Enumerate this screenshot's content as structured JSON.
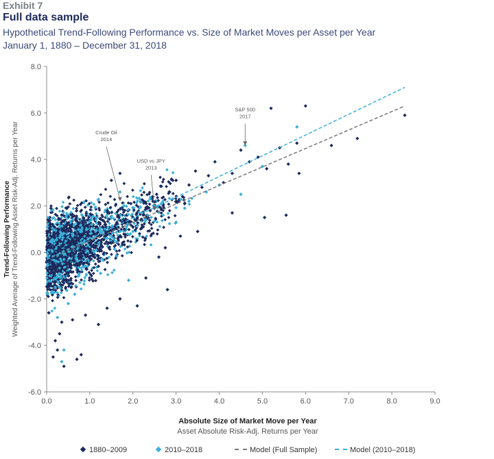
{
  "header": {
    "exhibit": "Exhibit 7",
    "title": "Full data sample",
    "subtitle": "Hypothetical Trend-Following Performance vs. Size of Market Moves per Asset per Year",
    "date_range": "January 1, 1880 – December 31, 2018"
  },
  "chart_data": {
    "type": "scatter",
    "xlabel": "Absolute Size of Market Move per Year",
    "xlabel_sub": "Asset Absolute Risk-Adj. Returns per Year",
    "ylabel": "Trend-Following Performance",
    "ylabel_sub": "Weighted Average of Trend-Following Asset Risk-Adj. Returns per Year",
    "xlim": [
      0.0,
      9.0
    ],
    "ylim": [
      -6.0,
      8.0
    ],
    "x_ticks": [
      "0.0",
      "1.0",
      "2.0",
      "3.0",
      "4.0",
      "5.0",
      "6.0",
      "7.0",
      "8.0",
      "9.0"
    ],
    "y_ticks": [
      "8.0",
      "6.0",
      "4.0",
      "2.0",
      "0.0",
      "-2.0",
      "-4.0",
      "-6.0"
    ],
    "grid": false,
    "legend_position": "bottom",
    "colors": {
      "series_1880": "#1d2a5c",
      "series_2010": "#3bb0d8",
      "model_full": "#777777",
      "model_recent": "#3bb0d8"
    },
    "series": [
      {
        "name": "1880–2009",
        "kind": "markers",
        "points": [
          [
            0.1,
            1.9
          ],
          [
            0.05,
            -2.6
          ],
          [
            0.15,
            -4.5
          ],
          [
            0.2,
            -3.8
          ],
          [
            0.25,
            -4.2
          ],
          [
            0.4,
            -4.9
          ],
          [
            0.7,
            -4.6
          ],
          [
            0.8,
            -4.4
          ],
          [
            0.35,
            -3.0
          ],
          [
            0.6,
            -2.9
          ],
          [
            0.1,
            0.2
          ],
          [
            0.2,
            -0.8
          ],
          [
            0.3,
            0.5
          ],
          [
            0.45,
            -1.2
          ],
          [
            0.55,
            1.1
          ],
          [
            0.7,
            0.3
          ],
          [
            0.85,
            -0.5
          ],
          [
            0.95,
            1.4
          ],
          [
            1.1,
            0.8
          ],
          [
            1.2,
            -0.6
          ],
          [
            1.35,
            1.2
          ],
          [
            1.5,
            0.4
          ],
          [
            1.65,
            1.6
          ],
          [
            1.8,
            1.0
          ],
          [
            1.95,
            2.1
          ],
          [
            2.1,
            1.5
          ],
          [
            2.25,
            2.2
          ],
          [
            2.4,
            1.8
          ],
          [
            2.55,
            2.5
          ],
          [
            2.7,
            2.0
          ],
          [
            2.85,
            2.6
          ],
          [
            3.0,
            3.1
          ],
          [
            3.15,
            2.4
          ],
          [
            3.3,
            2.9
          ],
          [
            3.45,
            3.5
          ],
          [
            3.6,
            2.8
          ],
          [
            3.75,
            3.3
          ],
          [
            3.9,
            3.9
          ],
          [
            4.1,
            3.0
          ],
          [
            4.3,
            3.4
          ],
          [
            4.5,
            4.4
          ],
          [
            4.7,
            3.9
          ],
          [
            4.9,
            4.1
          ],
          [
            5.1,
            3.6
          ],
          [
            5.2,
            6.2
          ],
          [
            5.4,
            4.5
          ],
          [
            5.6,
            3.8
          ],
          [
            5.8,
            4.7
          ],
          [
            6.0,
            6.3
          ],
          [
            5.85,
            3.4
          ],
          [
            5.05,
            1.5
          ],
          [
            5.55,
            1.6
          ],
          [
            4.3,
            1.7
          ],
          [
            3.5,
            0.9
          ],
          [
            2.6,
            -0.2
          ],
          [
            2.3,
            -1.1
          ],
          [
            2.75,
            0.2
          ],
          [
            3.1,
            0.7
          ],
          [
            1.7,
            -2.0
          ],
          [
            2.1,
            -2.3
          ],
          [
            1.2,
            -3.1
          ],
          [
            2.8,
            -1.6
          ],
          [
            6.6,
            4.6
          ],
          [
            7.2,
            4.9
          ],
          [
            8.3,
            5.9
          ],
          [
            1.5,
            3.1
          ],
          [
            1.7,
            3.4
          ],
          [
            0.3,
            -3.5
          ],
          [
            0.9,
            -2.7
          ],
          [
            1.4,
            -2.4
          ]
        ]
      },
      {
        "name": "2010–2018",
        "kind": "markers",
        "points": [
          [
            0.1,
            0.5
          ],
          [
            0.2,
            -1.5
          ],
          [
            0.3,
            1.1
          ],
          [
            0.4,
            -0.3
          ],
          [
            0.5,
            -2.2
          ],
          [
            0.6,
            0.8
          ],
          [
            0.75,
            -1.0
          ],
          [
            0.85,
            0.4
          ],
          [
            0.95,
            -0.6
          ],
          [
            1.05,
            1.2
          ],
          [
            1.15,
            0.1
          ],
          [
            1.25,
            -0.9
          ],
          [
            1.4,
            1.5
          ],
          [
            1.55,
            0.6
          ],
          [
            1.7,
            2.6
          ],
          [
            1.85,
            1.1
          ],
          [
            2.0,
            0.9
          ],
          [
            2.15,
            1.9
          ],
          [
            2.3,
            1.4
          ],
          [
            2.5,
            2.0
          ],
          [
            2.7,
            1.6
          ],
          [
            3.0,
            1.3
          ],
          [
            3.3,
            2.2
          ],
          [
            3.7,
            2.6
          ],
          [
            4.0,
            2.9
          ],
          [
            4.6,
            4.6
          ],
          [
            5.8,
            5.4
          ],
          [
            4.5,
            2.5
          ],
          [
            3.2,
            1.9
          ],
          [
            0.4,
            -4.2
          ],
          [
            0.35,
            -4.7
          ],
          [
            1.9,
            -1.2
          ],
          [
            0.25,
            -2.8
          ],
          [
            0.65,
            -1.8
          ],
          [
            1.3,
            0.9
          ],
          [
            2.4,
            2.3
          ],
          [
            5.0,
            3.7
          ]
        ]
      },
      {
        "name": "Model (Full Sample)",
        "kind": "line",
        "x": [
          0.0,
          8.3
        ],
        "y": [
          -0.3,
          6.3
        ]
      },
      {
        "name": "Model (2010–2018)",
        "kind": "line",
        "x": [
          0.0,
          8.3
        ],
        "y": [
          -0.3,
          7.1
        ]
      }
    ],
    "annotations": [
      {
        "lines": [
          "Crude Oil",
          "2014"
        ],
        "x": 1.7,
        "y": 2.2
      },
      {
        "lines": [
          "USD vs JPY",
          "2013"
        ],
        "x": 2.5,
        "y": 1.8
      },
      {
        "lines": [
          "S&P 500",
          "2017"
        ],
        "x": 4.6,
        "y": 4.6
      }
    ]
  }
}
